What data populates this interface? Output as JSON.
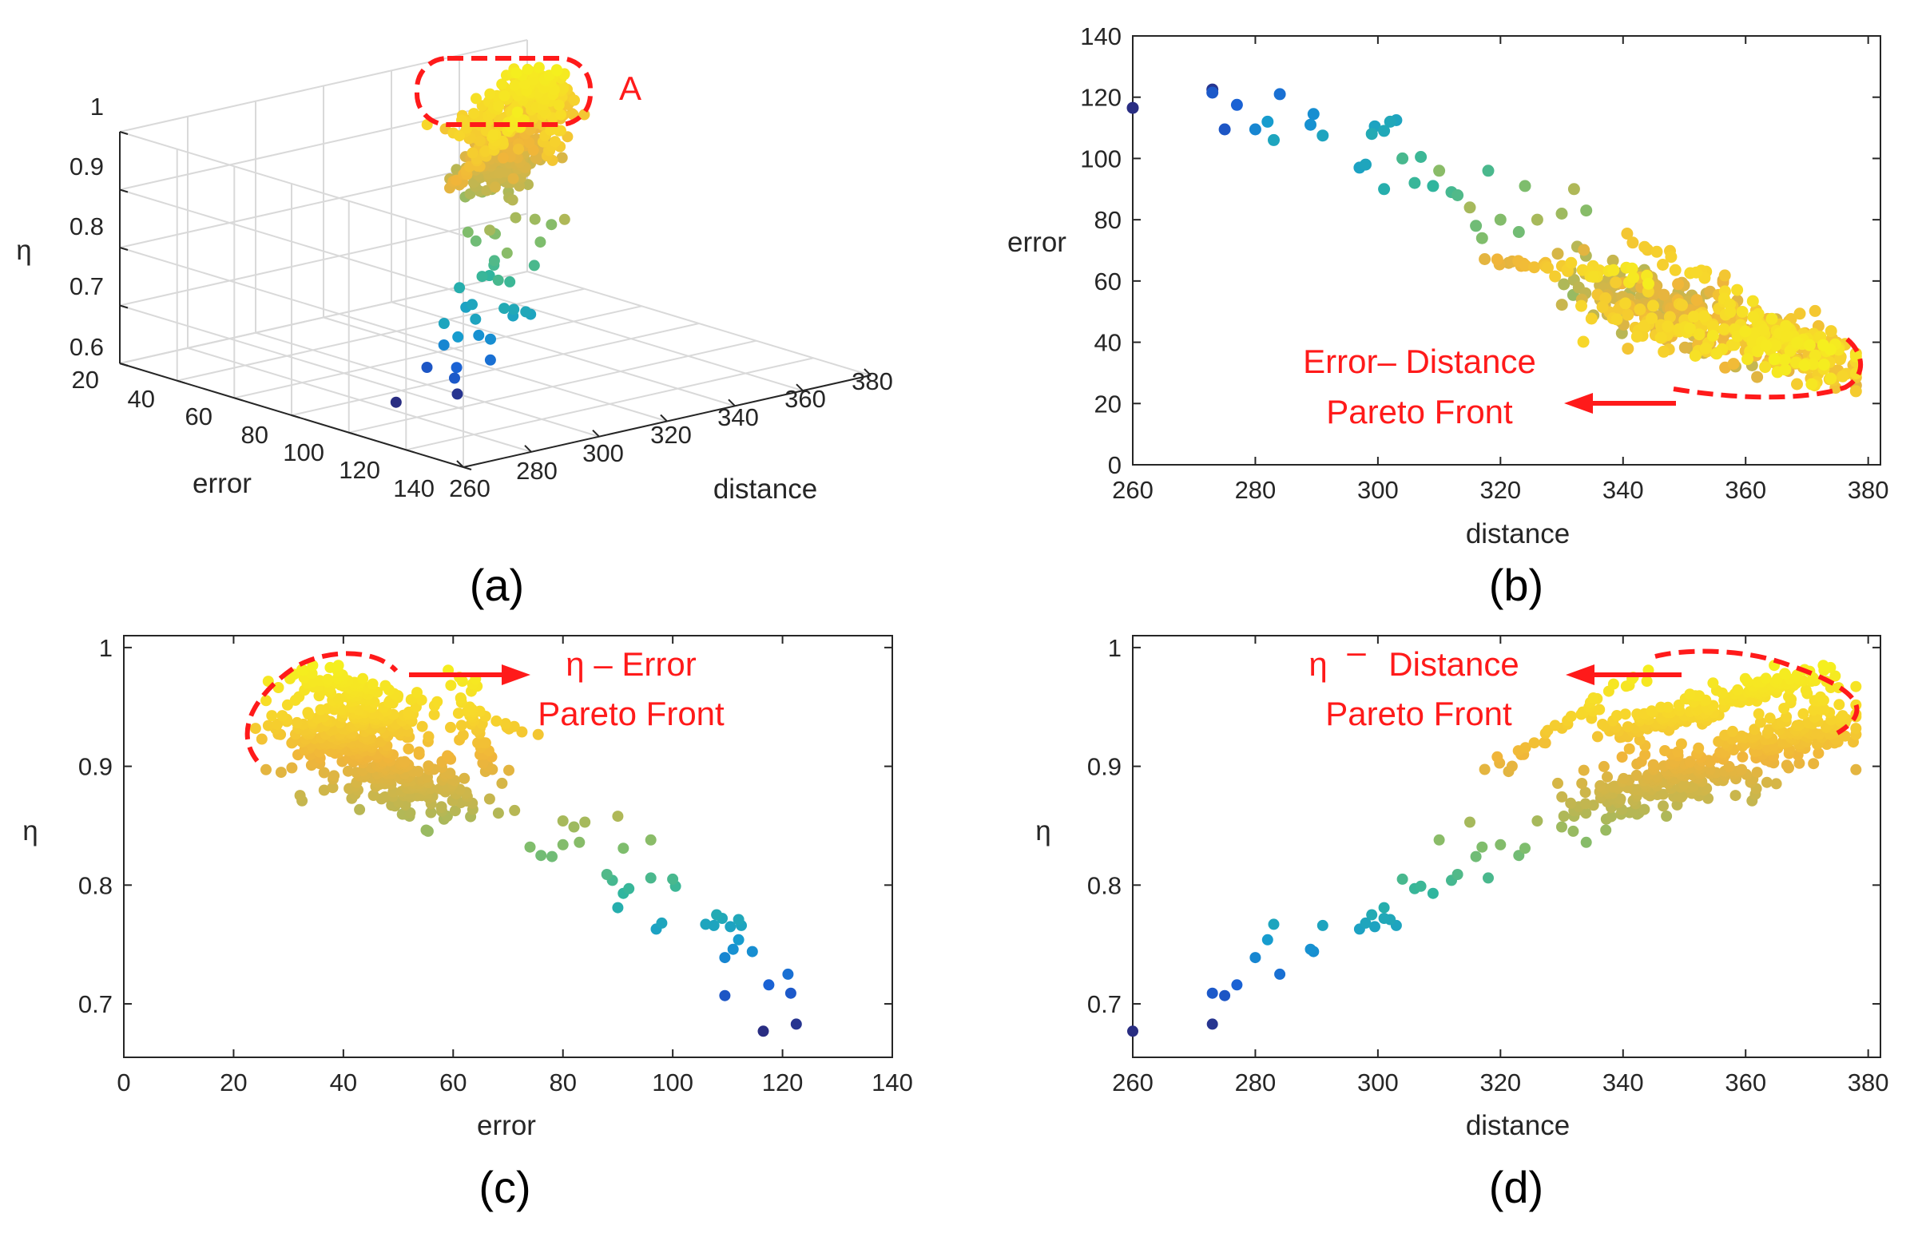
{
  "panels": {
    "a": "(a)",
    "b": "(b)",
    "c": "(c)",
    "d": "(d)"
  },
  "annotations": {
    "a_label": "A",
    "b_line1": "Error– Distance",
    "b_line2": "Pareto Front",
    "c_line1": "η – Error",
    "c_line2": "Pareto Front",
    "d_eta": "η",
    "d_dash": "–",
    "d_line1": "Distance",
    "d_line2": "Pareto Front"
  },
  "colors": {
    "front_marker": "#ff1a1a",
    "colormap": [
      "#2a2a7e",
      "#1a5fd4",
      "#169bd0",
      "#2cb5a0",
      "#7cbd6e",
      "#c2b650",
      "#f0b53a",
      "#f7d82a",
      "#f5ef1e"
    ]
  },
  "chart_data": [
    {
      "id": "a",
      "type": "scatter",
      "xlabel": "distance",
      "ylabel": "error",
      "zlabel": "η",
      "xticks": [
        "260",
        "280",
        "300",
        "320",
        "340",
        "360",
        "380"
      ],
      "yticks": [
        "20",
        "40",
        "60",
        "80",
        "100",
        "120",
        "140"
      ],
      "zticks": [
        "0.6",
        "0.7",
        "0.8",
        "0.9",
        "1"
      ],
      "xlim": [
        260,
        380
      ],
      "ylim": [
        20,
        140
      ],
      "zlim": [
        0.6,
        1
      ],
      "grid": true
    },
    {
      "id": "b",
      "type": "scatter",
      "xlabel": "distance",
      "ylabel": "error",
      "xticks": [
        "260",
        "280",
        "300",
        "320",
        "340",
        "360",
        "380"
      ],
      "yticks": [
        "0",
        "20",
        "40",
        "60",
        "80",
        "100",
        "120",
        "140"
      ],
      "xlim": [
        260,
        382
      ],
      "ylim": [
        0,
        140
      ]
    },
    {
      "id": "c",
      "type": "scatter",
      "xlabel": "error",
      "ylabel": "η",
      "xticks": [
        "0",
        "20",
        "40",
        "60",
        "80",
        "100",
        "120",
        "140"
      ],
      "yticks": [
        "0.7",
        "0.8",
        "0.9",
        "1"
      ],
      "xlim": [
        0,
        140
      ],
      "ylim": [
        0.655,
        1.01
      ]
    },
    {
      "id": "d",
      "type": "scatter",
      "xlabel": "distance",
      "ylabel": "η",
      "xticks": [
        "260",
        "280",
        "300",
        "320",
        "340",
        "360",
        "380"
      ],
      "yticks": [
        "0.7",
        "0.8",
        "0.9",
        "1"
      ],
      "xlim": [
        260,
        382
      ],
      "ylim": [
        0.655,
        1.01
      ]
    }
  ],
  "sample_points": [
    [
      260,
      116.5,
      0.677
    ],
    [
      273,
      122.5,
      0.683
    ],
    [
      273,
      121.5,
      0.709
    ],
    [
      275,
      109.5,
      0.707
    ],
    [
      277,
      117.5,
      0.716
    ],
    [
      280,
      109.5,
      0.739
    ],
    [
      282,
      112,
      0.754
    ],
    [
      283,
      106,
      0.767
    ],
    [
      284,
      121,
      0.725
    ],
    [
      289,
      111,
      0.746
    ],
    [
      289.5,
      114.5,
      0.744
    ],
    [
      291,
      107.5,
      0.766
    ],
    [
      297,
      97,
      0.763
    ],
    [
      298,
      98,
      0.768
    ],
    [
      299,
      108,
      0.775
    ],
    [
      299.5,
      110.5,
      0.765
    ],
    [
      301,
      109,
      0.772
    ],
    [
      301,
      90,
      0.781
    ],
    [
      302,
      112,
      0.771
    ],
    [
      303,
      112.5,
      0.766
    ],
    [
      304,
      100,
      0.805
    ],
    [
      306,
      92,
      0.797
    ],
    [
      307,
      100.5,
      0.799
    ],
    [
      309,
      91,
      0.793
    ],
    [
      310,
      96,
      0.838
    ],
    [
      312,
      89,
      0.804
    ],
    [
      313,
      88,
      0.809
    ],
    [
      315,
      84,
      0.853
    ],
    [
      316,
      78,
      0.824
    ],
    [
      317,
      74,
      0.832
    ],
    [
      318,
      96,
      0.806
    ],
    [
      320,
      80,
      0.834
    ],
    [
      323,
      76,
      0.825
    ],
    [
      324,
      91,
      0.831
    ],
    [
      326,
      80,
      0.854
    ],
    [
      330,
      82,
      0.849
    ],
    [
      332,
      90,
      0.858
    ],
    [
      334,
      83,
      0.836
    ]
  ]
}
